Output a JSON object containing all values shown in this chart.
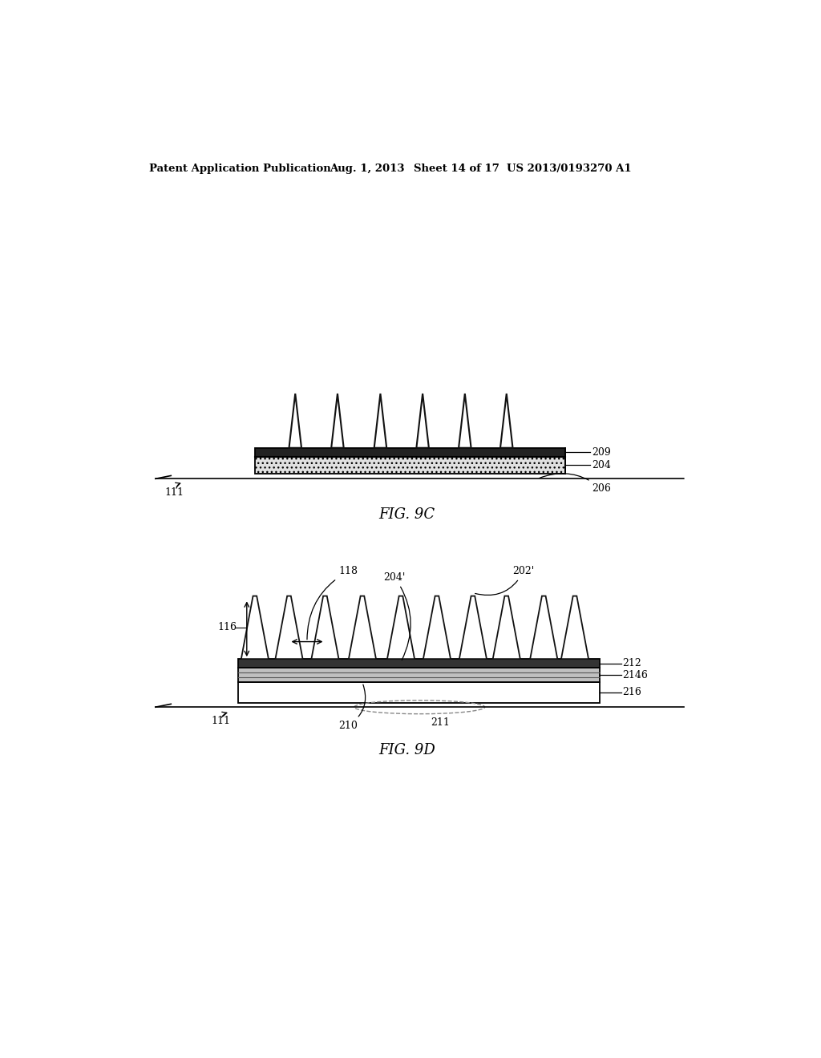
{
  "bg_color": "white",
  "header_text": "Patent Application Publication",
  "header_date": "Aug. 1, 2013",
  "header_sheet": "Sheet 14 of 17",
  "header_patent": "US 2013/0193270 A1",
  "fig9c_label": "FIG. 9C",
  "fig9d_label": "FIG. 9D",
  "lc": "#000000",
  "riblet_fill_9c": "#ffffff",
  "riblet_outline": "#111111",
  "hatch_fill": "#e8e8e8",
  "dark_strip": "#333333",
  "mid_gray": "#999999",
  "layer_white": "#ffffff",
  "layer_gray2146": "#bbbbbb",
  "stipple_color": "#cccccc"
}
